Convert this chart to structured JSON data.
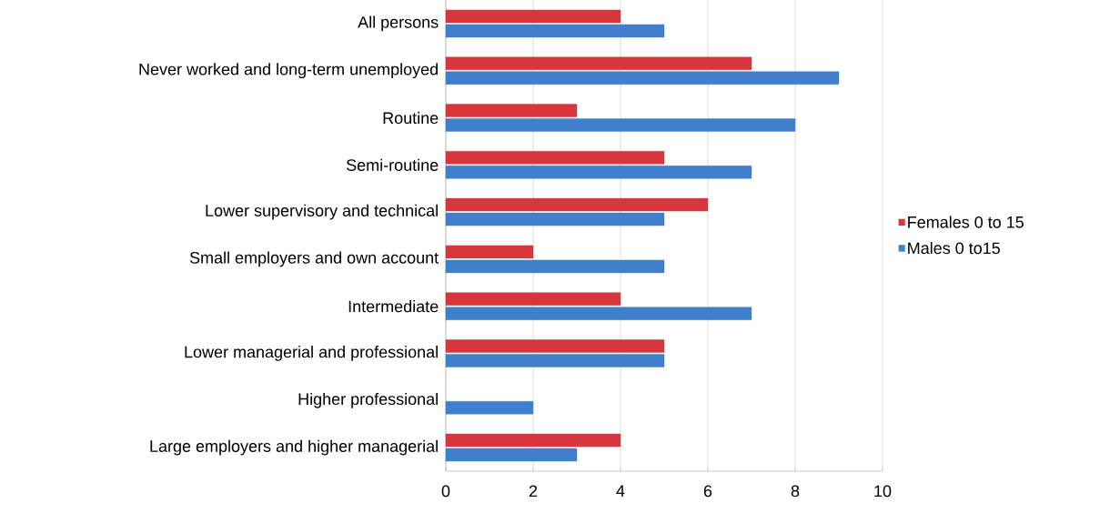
{
  "chart_data": {
    "type": "bar",
    "orientation": "horizontal",
    "categories": [
      "All persons",
      "Never worked and long-term unemployed",
      "Routine",
      "Semi-routine",
      "Lower supervisory and technical",
      "Small employers and own account",
      "Intermediate",
      "Lower managerial and professional",
      "Higher professional",
      "Large employers and higher managerial"
    ],
    "series": [
      {
        "name": "Females 0 to 15",
        "color": "#d7373c",
        "values": [
          4,
          7,
          3,
          5,
          6,
          2,
          4,
          5,
          null,
          4
        ]
      },
      {
        "name": "Males 0 to15",
        "color": "#3f7fcc",
        "values": [
          5,
          9,
          8,
          7,
          5,
          5,
          7,
          5,
          2,
          3
        ]
      }
    ],
    "xlim": [
      0,
      10
    ],
    "xticks": [
      0,
      2,
      4,
      6,
      8,
      10
    ],
    "grid": "x",
    "legend": "right"
  }
}
